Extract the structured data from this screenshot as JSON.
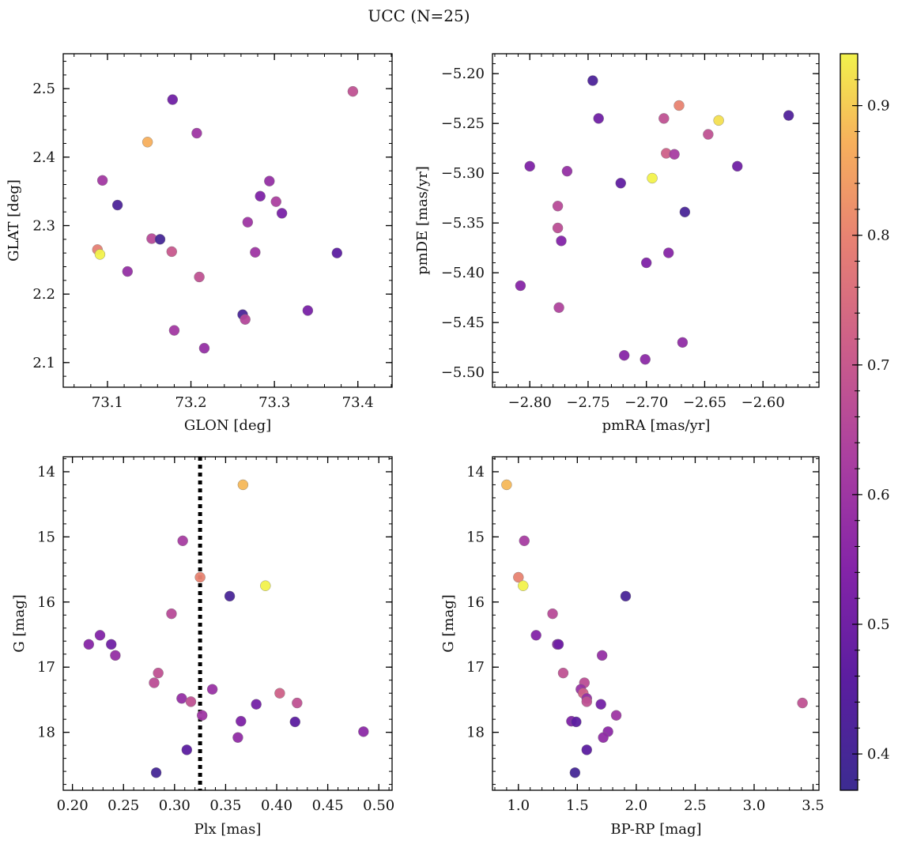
{
  "figure": {
    "title": "UCC (N=25)"
  },
  "colorbar": {
    "min": 0.372,
    "max": 0.94,
    "ticks": [
      0.4,
      0.5,
      0.6,
      0.7,
      0.8,
      0.9
    ],
    "tick_labels": [
      "0.4",
      "0.5",
      "0.6",
      "0.7",
      "0.8",
      "0.9"
    ],
    "colormap": "plasma"
  },
  "chart_data": [
    {
      "type": "scatter",
      "xlabel": "GLON [deg]",
      "ylabel": "GLAT [deg]",
      "xlim": [
        73.047,
        73.441
      ],
      "ylim": [
        2.064,
        2.551
      ],
      "xticks": [
        73.1,
        73.2,
        73.3,
        73.4
      ],
      "xtick_labels": [
        "73.1",
        "73.2",
        "73.3",
        "73.4"
      ],
      "yticks": [
        2.1,
        2.2,
        2.3,
        2.4,
        2.5
      ],
      "ytick_labels": [
        "2.1",
        "2.2",
        "2.3",
        "2.4",
        "2.5"
      ],
      "points": [
        {
          "x": 73.394,
          "y": 2.496,
          "c": 0.68
        },
        {
          "x": 73.178,
          "y": 2.484,
          "c": 0.5
        },
        {
          "x": 73.207,
          "y": 2.435,
          "c": 0.6
        },
        {
          "x": 73.148,
          "y": 2.422,
          "c": 0.87
        },
        {
          "x": 73.094,
          "y": 2.366,
          "c": 0.61
        },
        {
          "x": 73.294,
          "y": 2.365,
          "c": 0.58
        },
        {
          "x": 73.283,
          "y": 2.343,
          "c": 0.53
        },
        {
          "x": 73.302,
          "y": 2.335,
          "c": 0.63
        },
        {
          "x": 73.112,
          "y": 2.33,
          "c": 0.42
        },
        {
          "x": 73.309,
          "y": 2.318,
          "c": 0.52
        },
        {
          "x": 73.268,
          "y": 2.305,
          "c": 0.6
        },
        {
          "x": 73.153,
          "y": 2.281,
          "c": 0.66
        },
        {
          "x": 73.163,
          "y": 2.28,
          "c": 0.4
        },
        {
          "x": 73.088,
          "y": 2.265,
          "c": 0.79
        },
        {
          "x": 73.177,
          "y": 2.262,
          "c": 0.7
        },
        {
          "x": 73.277,
          "y": 2.261,
          "c": 0.6
        },
        {
          "x": 73.375,
          "y": 2.26,
          "c": 0.46
        },
        {
          "x": 73.091,
          "y": 2.258,
          "c": 0.94
        },
        {
          "x": 73.124,
          "y": 2.233,
          "c": 0.58
        },
        {
          "x": 73.21,
          "y": 2.225,
          "c": 0.68
        },
        {
          "x": 73.34,
          "y": 2.176,
          "c": 0.52
        },
        {
          "x": 73.262,
          "y": 2.17,
          "c": 0.41
        },
        {
          "x": 73.265,
          "y": 2.163,
          "c": 0.65
        },
        {
          "x": 73.18,
          "y": 2.147,
          "c": 0.61
        },
        {
          "x": 73.216,
          "y": 2.121,
          "c": 0.58
        }
      ]
    },
    {
      "type": "scatter",
      "xlabel": "pmRA [mas/yr]",
      "ylabel": "pmDE [mas/yr]",
      "xlim": [
        -2.832,
        -2.552
      ],
      "ylim": [
        -5.515,
        -5.18
      ],
      "xticks": [
        -2.8,
        -2.75,
        -2.7,
        -2.65,
        -2.6
      ],
      "xtick_labels": [
        "−2.80",
        "−2.75",
        "−2.70",
        "−2.65",
        "−2.60"
      ],
      "yticks": [
        -5.5,
        -5.45,
        -5.4,
        -5.35,
        -5.3,
        -5.25,
        -5.2
      ],
      "ytick_labels": [
        "−5.50",
        "−5.45",
        "−5.40",
        "−5.35",
        "−5.30",
        "−5.25",
        "−5.20"
      ],
      "points": [
        {
          "x": -2.746,
          "y": -5.207,
          "c": 0.42
        },
        {
          "x": -2.578,
          "y": -5.242,
          "c": 0.43
        },
        {
          "x": -2.672,
          "y": -5.232,
          "c": 0.8
        },
        {
          "x": -2.741,
          "y": -5.245,
          "c": 0.5
        },
        {
          "x": -2.685,
          "y": -5.245,
          "c": 0.68
        },
        {
          "x": -2.638,
          "y": -5.247,
          "c": 0.92
        },
        {
          "x": -2.647,
          "y": -5.261,
          "c": 0.68
        },
        {
          "x": -2.683,
          "y": -5.28,
          "c": 0.72
        },
        {
          "x": -2.676,
          "y": -5.281,
          "c": 0.62
        },
        {
          "x": -2.8,
          "y": -5.293,
          "c": 0.53
        },
        {
          "x": -2.622,
          "y": -5.293,
          "c": 0.5
        },
        {
          "x": -2.768,
          "y": -5.298,
          "c": 0.58
        },
        {
          "x": -2.695,
          "y": -5.305,
          "c": 0.94
        },
        {
          "x": -2.722,
          "y": -5.31,
          "c": 0.47
        },
        {
          "x": -2.776,
          "y": -5.333,
          "c": 0.66
        },
        {
          "x": -2.667,
          "y": -5.339,
          "c": 0.41
        },
        {
          "x": -2.776,
          "y": -5.355,
          "c": 0.67
        },
        {
          "x": -2.773,
          "y": -5.368,
          "c": 0.54
        },
        {
          "x": -2.681,
          "y": -5.38,
          "c": 0.55
        },
        {
          "x": -2.7,
          "y": -5.39,
          "c": 0.53
        },
        {
          "x": -2.808,
          "y": -5.413,
          "c": 0.55
        },
        {
          "x": -2.775,
          "y": -5.435,
          "c": 0.64
        },
        {
          "x": -2.669,
          "y": -5.47,
          "c": 0.57
        },
        {
          "x": -2.719,
          "y": -5.483,
          "c": 0.55
        },
        {
          "x": -2.701,
          "y": -5.487,
          "c": 0.56
        }
      ]
    },
    {
      "type": "scatter",
      "xlabel": "Plx [mas]",
      "ylabel": "G [mag]",
      "xlim": [
        0.191,
        0.513
      ],
      "ylim": [
        18.89,
        13.77
      ],
      "xticks": [
        0.2,
        0.25,
        0.3,
        0.35,
        0.4,
        0.45,
        0.5
      ],
      "xtick_labels": [
        "0.20",
        "0.25",
        "0.30",
        "0.35",
        "0.40",
        "0.45",
        "0.50"
      ],
      "yticks": [
        14,
        15,
        16,
        17,
        18
      ],
      "ytick_labels": [
        "14",
        "15",
        "16",
        "17",
        "18"
      ],
      "vline": 0.325,
      "points": [
        {
          "x": 0.367,
          "y": 14.2,
          "c": 0.88
        },
        {
          "x": 0.308,
          "y": 15.06,
          "c": 0.62
        },
        {
          "x": 0.325,
          "y": 15.62,
          "c": 0.8
        },
        {
          "x": 0.389,
          "y": 15.75,
          "c": 0.94
        },
        {
          "x": 0.354,
          "y": 15.91,
          "c": 0.41
        },
        {
          "x": 0.297,
          "y": 16.18,
          "c": 0.66
        },
        {
          "x": 0.216,
          "y": 16.65,
          "c": 0.55
        },
        {
          "x": 0.227,
          "y": 16.51,
          "c": 0.54
        },
        {
          "x": 0.238,
          "y": 16.65,
          "c": 0.5
        },
        {
          "x": 0.242,
          "y": 16.82,
          "c": 0.58
        },
        {
          "x": 0.284,
          "y": 17.09,
          "c": 0.68
        },
        {
          "x": 0.28,
          "y": 17.24,
          "c": 0.67
        },
        {
          "x": 0.337,
          "y": 17.34,
          "c": 0.59
        },
        {
          "x": 0.403,
          "y": 17.4,
          "c": 0.72
        },
        {
          "x": 0.307,
          "y": 17.48,
          "c": 0.58
        },
        {
          "x": 0.316,
          "y": 17.53,
          "c": 0.68
        },
        {
          "x": 0.42,
          "y": 17.55,
          "c": 0.68
        },
        {
          "x": 0.38,
          "y": 17.57,
          "c": 0.51
        },
        {
          "x": 0.327,
          "y": 17.74,
          "c": 0.6
        },
        {
          "x": 0.365,
          "y": 17.83,
          "c": 0.53
        },
        {
          "x": 0.418,
          "y": 17.84,
          "c": 0.46
        },
        {
          "x": 0.485,
          "y": 17.99,
          "c": 0.56
        },
        {
          "x": 0.362,
          "y": 18.08,
          "c": 0.57
        },
        {
          "x": 0.312,
          "y": 18.27,
          "c": 0.46
        },
        {
          "x": 0.282,
          "y": 18.62,
          "c": 0.4
        }
      ]
    },
    {
      "type": "scatter",
      "xlabel": "BP-RP [mag]",
      "ylabel": "G [mag]",
      "xlim": [
        0.78,
        3.55
      ],
      "ylim": [
        18.89,
        13.77
      ],
      "xticks": [
        1.0,
        1.5,
        2.0,
        2.5,
        3.0,
        3.5
      ],
      "xtick_labels": [
        "1.0",
        "1.5",
        "2.0",
        "2.5",
        "3.0",
        "3.5"
      ],
      "yticks": [
        14,
        15,
        16,
        17,
        18
      ],
      "ytick_labels": [
        "14",
        "15",
        "16",
        "17",
        "18"
      ],
      "points": [
        {
          "x": 0.9,
          "y": 14.2,
          "c": 0.88
        },
        {
          "x": 1.05,
          "y": 15.06,
          "c": 0.62
        },
        {
          "x": 1.0,
          "y": 15.62,
          "c": 0.8
        },
        {
          "x": 1.04,
          "y": 15.75,
          "c": 0.94
        },
        {
          "x": 1.91,
          "y": 15.91,
          "c": 0.41
        },
        {
          "x": 1.29,
          "y": 16.18,
          "c": 0.66
        },
        {
          "x": 1.15,
          "y": 16.51,
          "c": 0.54
        },
        {
          "x": 1.33,
          "y": 16.65,
          "c": 0.55
        },
        {
          "x": 1.34,
          "y": 16.65,
          "c": 0.5
        },
        {
          "x": 1.71,
          "y": 16.82,
          "c": 0.58
        },
        {
          "x": 1.38,
          "y": 17.09,
          "c": 0.68
        },
        {
          "x": 1.56,
          "y": 17.24,
          "c": 0.67
        },
        {
          "x": 1.53,
          "y": 17.34,
          "c": 0.59
        },
        {
          "x": 1.55,
          "y": 17.4,
          "c": 0.72
        },
        {
          "x": 1.58,
          "y": 17.48,
          "c": 0.58
        },
        {
          "x": 1.58,
          "y": 17.53,
          "c": 0.68
        },
        {
          "x": 3.41,
          "y": 17.55,
          "c": 0.68
        },
        {
          "x": 1.7,
          "y": 17.57,
          "c": 0.51
        },
        {
          "x": 1.83,
          "y": 17.74,
          "c": 0.6
        },
        {
          "x": 1.45,
          "y": 17.83,
          "c": 0.53
        },
        {
          "x": 1.49,
          "y": 17.84,
          "c": 0.46
        },
        {
          "x": 1.76,
          "y": 17.99,
          "c": 0.56
        },
        {
          "x": 1.72,
          "y": 18.08,
          "c": 0.57
        },
        {
          "x": 1.58,
          "y": 18.27,
          "c": 0.46
        },
        {
          "x": 1.48,
          "y": 18.62,
          "c": 0.4
        }
      ]
    }
  ]
}
